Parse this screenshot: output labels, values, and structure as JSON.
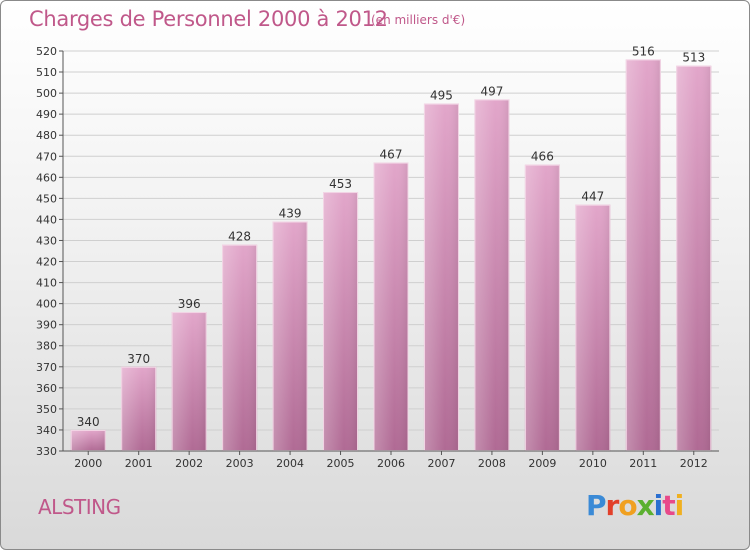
{
  "header": {
    "title": "Charges de Personnel 2000 à 2012",
    "subtitle": "(en milliers d'€)"
  },
  "footer": {
    "commune": "ALSTING",
    "brand_letters": [
      "P",
      "r",
      "o",
      "x",
      "i",
      "t",
      "i"
    ],
    "brand_colors": [
      "#3a8ad6",
      "#e2402a",
      "#f0a020",
      "#5bb030",
      "#2a6fd0",
      "#e84a8a",
      "#f0b020"
    ]
  },
  "chart_data": {
    "type": "bar",
    "categories": [
      "2000",
      "2001",
      "2002",
      "2003",
      "2004",
      "2005",
      "2006",
      "2007",
      "2008",
      "2009",
      "2010",
      "2011",
      "2012"
    ],
    "values": [
      340,
      370,
      396,
      428,
      439,
      453,
      467,
      495,
      497,
      466,
      447,
      516,
      513
    ],
    "ylim": [
      330,
      520
    ],
    "yticks": [
      330,
      340,
      350,
      360,
      370,
      380,
      390,
      400,
      410,
      420,
      430,
      440,
      450,
      460,
      470,
      480,
      490,
      500,
      510,
      520
    ],
    "grid": true,
    "colors": {
      "bar_light": "#e2a6ca",
      "bar_dark": "#b06a94",
      "grid": "#cfcfcf"
    }
  }
}
